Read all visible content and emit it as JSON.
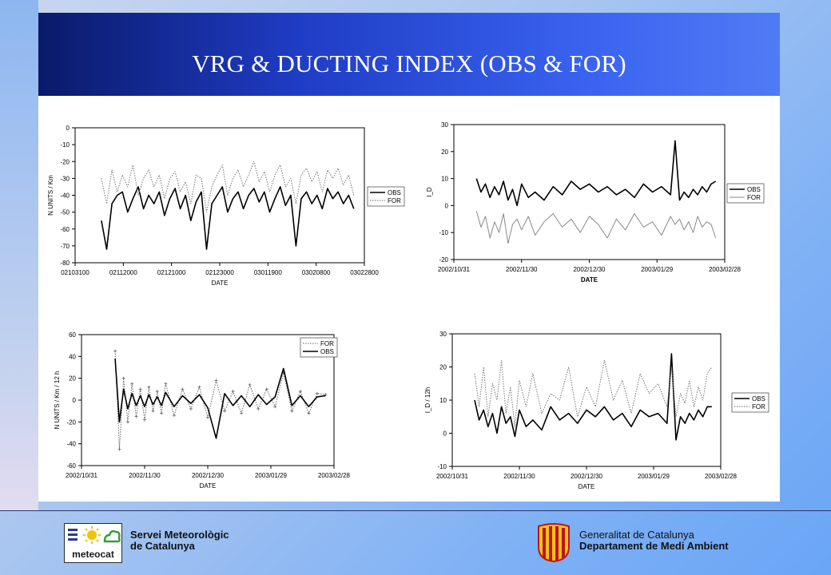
{
  "slide": {
    "title": "VRG & DUCTING INDEX (OBS & FOR)"
  },
  "footer": {
    "left_logo_text": "meteocat",
    "left_org_line1": "Servei Meteorològic",
    "left_org_line2": "de Catalunya",
    "right_org_line1": "Generalitat de Catalunya",
    "right_org_line2": "Departament de Medi Ambient"
  },
  "colors": {
    "banner_dark": "#0a1a6a",
    "banner_light": "#4f7cf5",
    "obs_line": "#000000",
    "for_line": "#8a8a8a"
  },
  "chart_data": [
    {
      "type": "line",
      "position": "top-left",
      "xlabel": "DATE",
      "ylabel": "N UNITS / Km",
      "xlim": [
        0,
        55
      ],
      "ylim": [
        -80,
        0
      ],
      "yticks": [
        0,
        -10,
        -20,
        -30,
        -40,
        -50,
        -60,
        -70,
        -80
      ],
      "xtick_labels": [
        "02103100",
        "02112000",
        "02121000",
        "02123000",
        "03011900",
        "03020800",
        "03022800"
      ],
      "legend": [
        "OBS",
        "FOR"
      ],
      "legend_position": "right-outside",
      "series": [
        {
          "name": "OBS",
          "style": "solid",
          "x": [
            5,
            6,
            7,
            8,
            9,
            10,
            11,
            12,
            13,
            14,
            15,
            16,
            17,
            18,
            19,
            20,
            21,
            22,
            23,
            24,
            25,
            26,
            27,
            28,
            29,
            30,
            31,
            32,
            33,
            34,
            35,
            36,
            37,
            38,
            39,
            40,
            41,
            42,
            43,
            44,
            45,
            46,
            47,
            48,
            49,
            50,
            51,
            52,
            53
          ],
          "y": [
            -55,
            -72,
            -45,
            -40,
            -38,
            -50,
            -42,
            -35,
            -48,
            -40,
            -45,
            -38,
            -52,
            -42,
            -36,
            -48,
            -40,
            -55,
            -44,
            -38,
            -72,
            -45,
            -40,
            -35,
            -50,
            -42,
            -38,
            -48,
            -40,
            -36,
            -44,
            -38,
            -50,
            -42,
            -35,
            -46,
            -40,
            -70,
            -42,
            -38,
            -45,
            -40,
            -48,
            -36,
            -42,
            -38,
            -45,
            -40,
            -48
          ]
        },
        {
          "name": "FOR",
          "style": "dotted",
          "x": [
            5,
            6,
            7,
            8,
            9,
            10,
            11,
            12,
            13,
            14,
            15,
            16,
            17,
            18,
            19,
            20,
            21,
            22,
            23,
            24,
            25,
            26,
            27,
            28,
            29,
            30,
            31,
            32,
            33,
            34,
            35,
            36,
            37,
            38,
            39,
            40,
            41,
            42,
            43,
            44,
            45,
            46,
            47,
            48,
            49,
            50,
            51,
            52,
            53
          ],
          "y": [
            -30,
            -45,
            -25,
            -38,
            -28,
            -35,
            -22,
            -40,
            -30,
            -25,
            -35,
            -28,
            -42,
            -30,
            -26,
            -38,
            -32,
            -45,
            -28,
            -30,
            -50,
            -35,
            -28,
            -22,
            -40,
            -30,
            -25,
            -35,
            -28,
            -20,
            -32,
            -26,
            -38,
            -28,
            -22,
            -35,
            -30,
            -45,
            -28,
            -24,
            -32,
            -26,
            -38,
            -25,
            -30,
            -24,
            -34,
            -28,
            -40
          ]
        }
      ]
    },
    {
      "type": "line",
      "position": "top-right",
      "xlabel": "DATE",
      "ylabel": "I_D",
      "xlim": [
        0,
        120
      ],
      "ylim": [
        -20,
        30
      ],
      "yticks": [
        30,
        20,
        10,
        0,
        -10,
        -20
      ],
      "xtick_labels": [
        "2002/10/31",
        "2002/11/30",
        "2002/12/30",
        "2003/01/29",
        "2003/02/28"
      ],
      "legend": [
        "OBS",
        "FOR"
      ],
      "legend_position": "right-outside",
      "series": [
        {
          "name": "OBS",
          "style": "solid",
          "x": [
            10,
            12,
            14,
            16,
            18,
            20,
            22,
            24,
            26,
            28,
            30,
            33,
            36,
            40,
            44,
            48,
            52,
            56,
            60,
            64,
            68,
            72,
            76,
            80,
            84,
            88,
            92,
            96,
            98,
            100,
            102,
            104,
            106,
            108,
            110,
            112,
            114,
            116
          ],
          "y": [
            10,
            5,
            8,
            3,
            7,
            4,
            9,
            2,
            6,
            0,
            8,
            3,
            5,
            2,
            7,
            4,
            9,
            6,
            8,
            5,
            7,
            4,
            6,
            3,
            8,
            5,
            7,
            4,
            24,
            2,
            5,
            3,
            6,
            4,
            7,
            5,
            8,
            9
          ]
        },
        {
          "name": "FOR",
          "style": "solid-gray",
          "x": [
            10,
            12,
            14,
            16,
            18,
            20,
            22,
            24,
            26,
            28,
            30,
            33,
            36,
            40,
            44,
            48,
            52,
            56,
            60,
            64,
            68,
            72,
            76,
            80,
            84,
            88,
            92,
            96,
            98,
            100,
            102,
            104,
            106,
            108,
            110,
            112,
            114,
            116
          ],
          "y": [
            -2,
            -8,
            -4,
            -12,
            -6,
            -10,
            -3,
            -14,
            -7,
            -5,
            -9,
            -4,
            -11,
            -6,
            -3,
            -8,
            -5,
            -10,
            -4,
            -7,
            -12,
            -5,
            -9,
            -3,
            -8,
            -6,
            -11,
            -4,
            -7,
            -5,
            -9,
            -6,
            -10,
            -4,
            -8,
            -6,
            -7,
            -12
          ]
        }
      ]
    },
    {
      "type": "line",
      "position": "bottom-left",
      "xlabel": "DATE",
      "ylabel": "N UNITS / Km / 12 h",
      "xlim": [
        0,
        120
      ],
      "ylim": [
        -60,
        60
      ],
      "yticks": [
        60,
        40,
        20,
        0,
        -20,
        -40,
        -60
      ],
      "xtick_labels": [
        "2002/10/31",
        "2002/11/30",
        "2002/12/30",
        "2003/01/29",
        "2003/02/28"
      ],
      "legend": [
        "FOR",
        "OBS"
      ],
      "legend_position": "top-right",
      "series": [
        {
          "name": "FOR",
          "style": "dotted-markers",
          "x": [
            16,
            18,
            20,
            22,
            24,
            26,
            28,
            30,
            32,
            34,
            36,
            38,
            40,
            44,
            48,
            52,
            56,
            60,
            64,
            68,
            72,
            76,
            80,
            84,
            88,
            92,
            96,
            100,
            104,
            108,
            112,
            116
          ],
          "y": [
            45,
            -45,
            20,
            -20,
            15,
            -15,
            10,
            -18,
            12,
            -10,
            8,
            -12,
            15,
            -14,
            10,
            -8,
            12,
            -16,
            18,
            -10,
            8,
            -12,
            14,
            -8,
            10,
            -6,
            25,
            -10,
            8,
            -12,
            6,
            5
          ]
        },
        {
          "name": "OBS",
          "style": "solid",
          "x": [
            16,
            18,
            20,
            22,
            24,
            26,
            28,
            30,
            32,
            34,
            36,
            38,
            40,
            44,
            48,
            52,
            56,
            60,
            64,
            68,
            72,
            76,
            80,
            84,
            88,
            92,
            96,
            100,
            104,
            108,
            112,
            116
          ],
          "y": [
            38,
            -20,
            10,
            -8,
            6,
            -5,
            4,
            -6,
            5,
            -4,
            3,
            -5,
            7,
            -6,
            4,
            -3,
            5,
            -7,
            -35,
            6,
            -5,
            4,
            -6,
            5,
            -4,
            3,
            29,
            -5,
            4,
            -6,
            3,
            4
          ]
        }
      ]
    },
    {
      "type": "line",
      "position": "bottom-right",
      "xlabel": "DATE",
      "ylabel": "I_D / 12h",
      "xlim": [
        0,
        120
      ],
      "ylim": [
        -10,
        30
      ],
      "yticks": [
        30,
        20,
        10,
        0,
        -10
      ],
      "xtick_labels": [
        "2002/10/31",
        "2002/11/30",
        "2002/12/30",
        "2003/01/29",
        "2003/02/28"
      ],
      "legend": [
        "OBS",
        "FOR"
      ],
      "legend_position": "right-outside",
      "series": [
        {
          "name": "OBS",
          "style": "solid",
          "x": [
            10,
            12,
            14,
            16,
            18,
            20,
            22,
            24,
            26,
            28,
            30,
            33,
            36,
            40,
            44,
            48,
            52,
            56,
            60,
            64,
            68,
            72,
            76,
            80,
            84,
            88,
            92,
            96,
            98,
            100,
            102,
            104,
            106,
            108,
            110,
            112,
            114,
            116
          ],
          "y": [
            10,
            4,
            7,
            2,
            6,
            0,
            8,
            3,
            5,
            -1,
            7,
            2,
            4,
            1,
            8,
            4,
            6,
            3,
            7,
            5,
            8,
            4,
            6,
            2,
            7,
            5,
            6,
            3,
            24,
            -2,
            5,
            3,
            6,
            4,
            7,
            5,
            8,
            8
          ]
        },
        {
          "name": "FOR",
          "style": "dotted",
          "x": [
            10,
            12,
            14,
            16,
            18,
            20,
            22,
            24,
            26,
            28,
            30,
            33,
            36,
            40,
            44,
            48,
            52,
            56,
            60,
            64,
            68,
            72,
            76,
            80,
            84,
            88,
            92,
            96,
            98,
            100,
            102,
            104,
            106,
            108,
            110,
            112,
            114,
            116
          ],
          "y": [
            18,
            8,
            20,
            5,
            15,
            10,
            22,
            6,
            14,
            2,
            16,
            8,
            18,
            6,
            12,
            10,
            20,
            5,
            14,
            8,
            22,
            10,
            16,
            6,
            18,
            12,
            15,
            8,
            20,
            5,
            12,
            9,
            16,
            8,
            14,
            10,
            18,
            20
          ]
        }
      ]
    }
  ]
}
